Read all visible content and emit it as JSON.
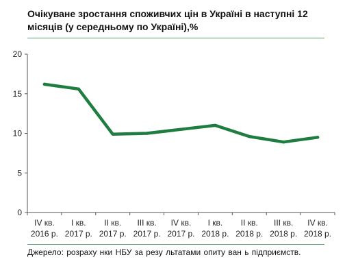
{
  "chart_data": {
    "type": "line",
    "title": "Очікуване зростання споживчих цін в Україні в наступні 12 місяців (у середньому по Україні),%",
    "categories": [
      [
        "IV кв.",
        "2016 р."
      ],
      [
        "I кв.",
        "2017 р."
      ],
      [
        "II кв.",
        "2017 р."
      ],
      [
        "III кв.",
        "2017 р."
      ],
      [
        "IV кв.",
        "2017 р."
      ],
      [
        "I кв.",
        "2018 р."
      ],
      [
        "II кв.",
        "2018 р."
      ],
      [
        "III кв.",
        "2018 р."
      ],
      [
        "IV кв.",
        "2018 р."
      ]
    ],
    "series": [
      {
        "values": [
          16.2,
          15.6,
          9.9,
          10.0,
          10.5,
          11.0,
          9.6,
          8.9,
          9.5
        ],
        "color": "#1e7d3f"
      }
    ],
    "yticks": [
      "0",
      "5",
      "10",
      "15",
      "20"
    ],
    "ylim": [
      0,
      20
    ],
    "grid": false,
    "source": "Джерело:  розраху нки   НБУ за резу льтатами опиту ван ь підприємств."
  }
}
